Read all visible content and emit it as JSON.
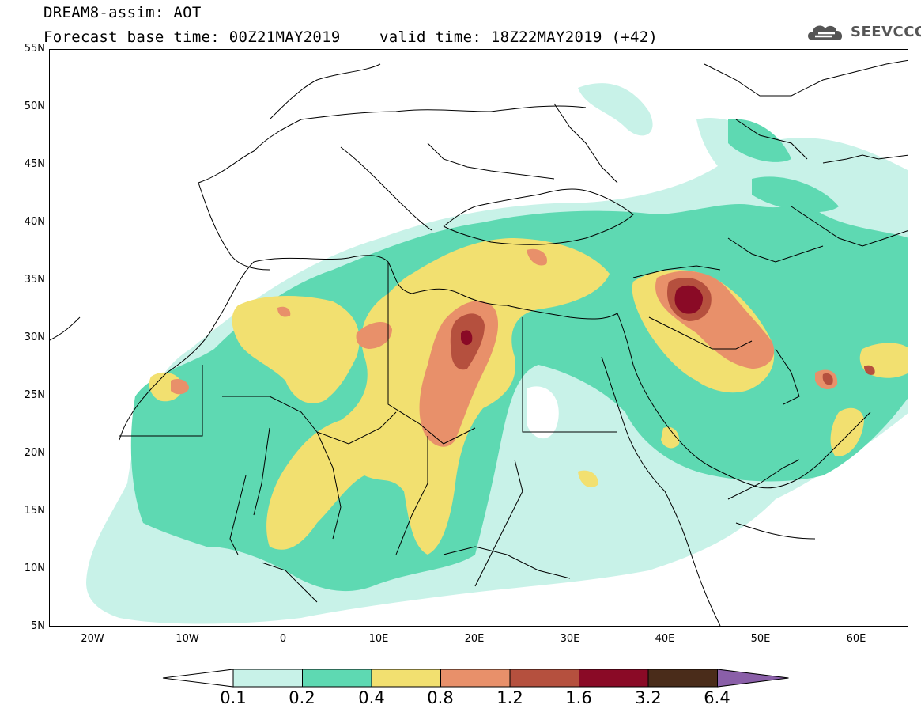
{
  "header": {
    "line1": "DREAM8-assim: AOT",
    "base_time": "Forecast base time: 00Z21MAY2019",
    "valid_time": "valid time: 18Z22MAY2019 (+42)"
  },
  "logo": {
    "icon": "cloud-icon",
    "text": "SEEVCCC"
  },
  "map": {
    "lon_range": [
      -25,
      65
    ],
    "lat_range": [
      5,
      55
    ],
    "lat_labels": [
      "55N",
      "50N",
      "45N",
      "40N",
      "35N",
      "30N",
      "25N",
      "20N",
      "15N",
      "10N",
      "5N"
    ],
    "lon_labels": [
      "20W",
      "10W",
      "0",
      "10E",
      "20E",
      "30E",
      "40E",
      "50E",
      "60E"
    ]
  },
  "colorbar": {
    "colors": [
      "#ffffff",
      "#c8f2e8",
      "#5ed9b2",
      "#f2e070",
      "#e8906a",
      "#b5503e",
      "#8a0a26",
      "#4a2c1a",
      "#8a5fa8"
    ],
    "labels": [
      "0.1",
      "0.2",
      "0.4",
      "0.8",
      "1.2",
      "1.6",
      "3.2",
      "6.4"
    ]
  }
}
